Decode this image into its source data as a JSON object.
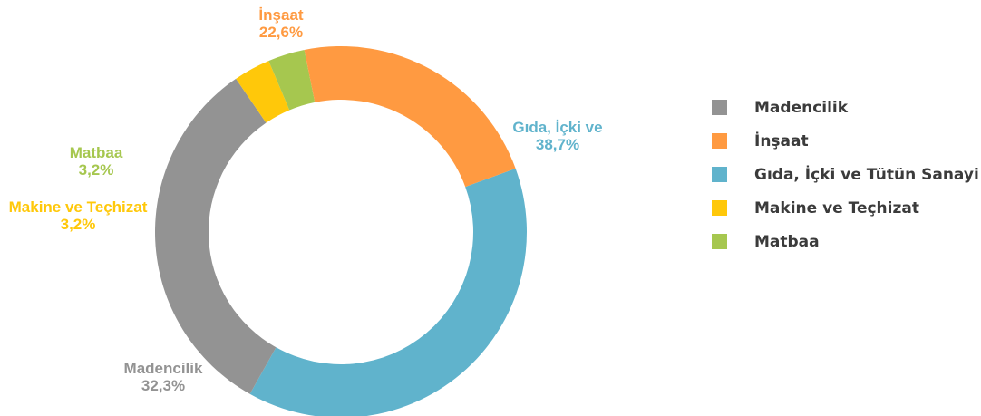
{
  "chart_data": {
    "type": "pie",
    "donut": true,
    "slices": [
      {
        "name": "Gıda, İçki ve Tütün Sanayi",
        "value": 38.7,
        "value_label": "38,7%",
        "label": "Gıda, İçki ve",
        "color": "#60B3CC"
      },
      {
        "name": "Madencilik",
        "value": 32.3,
        "value_label": "32,3%",
        "label": "Madencilik",
        "color": "#939393"
      },
      {
        "name": "Makine ve Teçhizat",
        "value": 3.2,
        "value_label": "3,2%",
        "label": "Makine ve Teçhizat",
        "color": "#FFC80A"
      },
      {
        "name": "Matbaa",
        "value": 3.2,
        "value_label": "3,2%",
        "label": "Matbaa",
        "color": "#A6C74F"
      },
      {
        "name": "İnşaat",
        "value": 22.6,
        "value_label": "22,6%",
        "label": "İnşaat",
        "color": "#FF9A41"
      }
    ],
    "legend": {
      "placement": "right",
      "items": [
        {
          "label": "Madencilik",
          "color": "#939393"
        },
        {
          "label": "İnşaat",
          "color": "#FF9A41"
        },
        {
          "label": "Gıda, İçki ve Tütün Sanayi",
          "color": "#60B3CC"
        },
        {
          "label": "Makine ve Teçhizat",
          "color": "#FFC80A"
        },
        {
          "label": "Matbaa",
          "color": "#A6C74F"
        }
      ]
    }
  }
}
